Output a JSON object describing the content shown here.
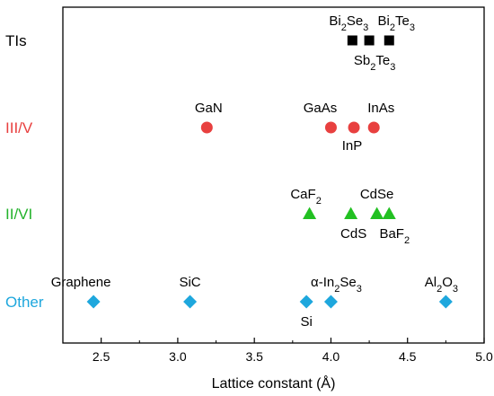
{
  "chart_data": {
    "type": "scatter",
    "title": "",
    "xlabel": "Lattice constant (Å)",
    "ylabel": "",
    "xlim": [
      2.25,
      5.0
    ],
    "x_ticks": [
      "2.5",
      "3.0",
      "3.5",
      "4.0",
      "4.5",
      "5.0"
    ],
    "grid": false,
    "legend": "none",
    "categories": [
      "TIs",
      "III/V",
      "II/VI",
      "Other"
    ],
    "series": [
      {
        "name": "TIs",
        "label_color": "#000000",
        "marker": "square",
        "marker_color": "#000000",
        "points": [
          {
            "label": "Bi2Se3",
            "x": 4.14
          },
          {
            "label": "Sb2Te3",
            "x": 4.25
          },
          {
            "label": "Bi2Te3",
            "x": 4.38
          }
        ]
      },
      {
        "name": "III/V",
        "label_color": "#e8403f",
        "marker": "circle",
        "marker_color": "#e8403f",
        "points": [
          {
            "label": "GaN",
            "x": 3.19
          },
          {
            "label": "GaAs",
            "x": 4.0
          },
          {
            "label": "InP",
            "x": 4.15
          },
          {
            "label": "InAs",
            "x": 4.28
          }
        ]
      },
      {
        "name": "II/VI",
        "label_color": "#22b22a",
        "marker": "triangle",
        "marker_color": "#22c022",
        "points": [
          {
            "label": "CaF2",
            "x": 3.86
          },
          {
            "label": "CdS",
            "x": 4.13
          },
          {
            "label": "CdSe",
            "x": 4.3
          },
          {
            "label": "BaF2",
            "x": 4.38
          }
        ]
      },
      {
        "name": "Other",
        "label_color": "#1ea7dd",
        "marker": "diamond",
        "marker_color": "#1ea7dd",
        "points": [
          {
            "label": "Graphene",
            "x": 2.45
          },
          {
            "label": "SiC",
            "x": 3.08
          },
          {
            "label": "Si",
            "x": 3.84
          },
          {
            "label": "α-In2Se3",
            "x": 4.0
          },
          {
            "label": "Al2O3",
            "x": 4.75
          }
        ]
      }
    ]
  }
}
